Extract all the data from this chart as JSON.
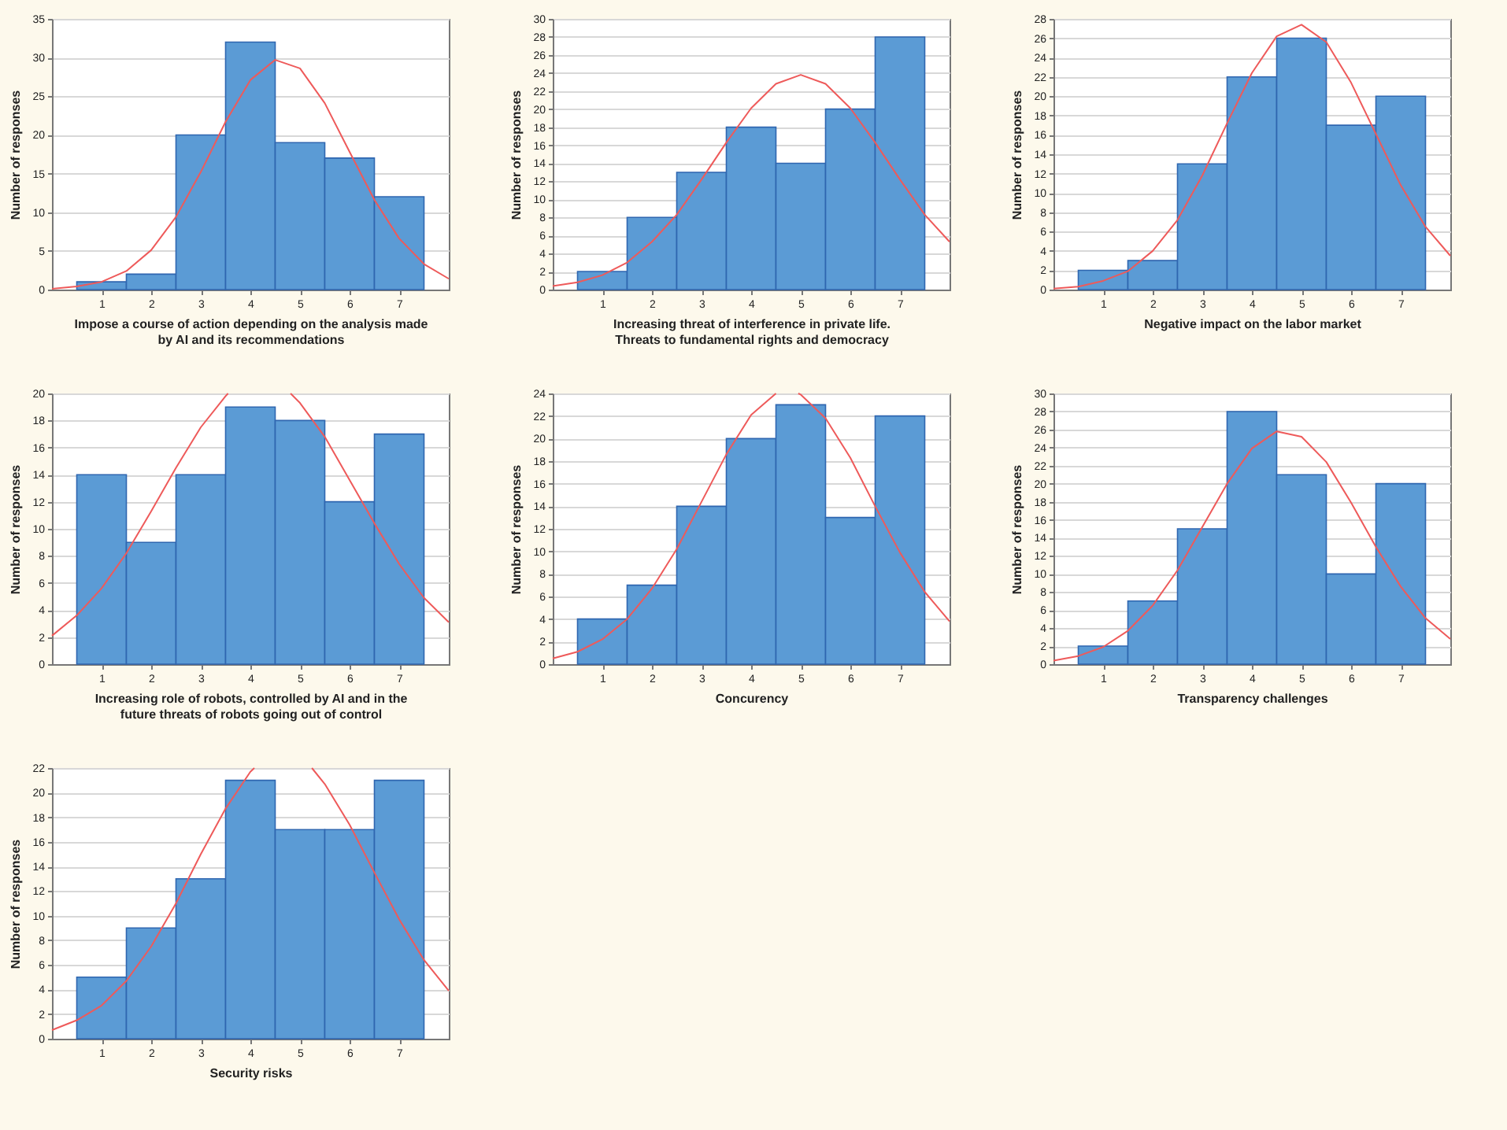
{
  "chart_data": [
    {
      "type": "histogram",
      "xlabel": "Impose a course of action depending on the analysis made by AI and its recommendations",
      "ylabel": "Number of responses",
      "bins": [
        0.5,
        1.5,
        2.5,
        3.5,
        4.5,
        5.5,
        6.5,
        7.5
      ],
      "values": [
        1,
        2,
        20,
        32,
        19,
        17,
        12
      ],
      "color": "#5b9bd5",
      "xlim": [
        0,
        8
      ],
      "xticks": [
        1,
        2,
        3,
        4,
        5,
        6,
        7
      ],
      "ylim": [
        0,
        35
      ],
      "yticks": [
        0,
        5,
        10,
        15,
        20,
        25,
        30,
        35
      ],
      "grid": "y",
      "series": [
        {
          "type": "line",
          "color": "#ee5a5a",
          "x": [
            0,
            0.5,
            1,
            1.5,
            2,
            2.5,
            3,
            3.5,
            4,
            4.5,
            5,
            5.5,
            6,
            6.5,
            7,
            7.5,
            8
          ],
          "values": [
            0.1,
            0.4,
            1.0,
            2.4,
            5.1,
            9.4,
            15.2,
            21.7,
            27.1,
            29.7,
            28.6,
            24.1,
            17.8,
            11.6,
            6.6,
            3.3,
            1.4
          ]
        }
      ]
    },
    {
      "type": "histogram",
      "xlabel": "Increasing threat of interference in private life. Threats to fundamental rights and democracy",
      "ylabel": "Number of responses",
      "bins": [
        0.5,
        1.5,
        2.5,
        3.5,
        4.5,
        5.5,
        6.5,
        7.5
      ],
      "values": [
        2,
        8,
        13,
        18,
        14,
        20,
        28
      ],
      "color": "#5b9bd5",
      "xlim": [
        0,
        8
      ],
      "xticks": [
        1,
        2,
        3,
        4,
        5,
        6,
        7
      ],
      "ylim": [
        0,
        30
      ],
      "yticks": [
        0,
        2,
        4,
        6,
        8,
        10,
        12,
        14,
        16,
        18,
        20,
        22,
        24,
        26,
        28,
        30
      ],
      "grid": "y",
      "series": [
        {
          "type": "line",
          "color": "#ee5a5a",
          "x": [
            0,
            0.5,
            1,
            1.5,
            2,
            2.5,
            3,
            3.5,
            4,
            4.5,
            5,
            5.5,
            6,
            6.5,
            7,
            7.5,
            8
          ],
          "values": [
            0.4,
            0.8,
            1.6,
            3.0,
            5.3,
            8.3,
            12.2,
            16.3,
            20.1,
            22.8,
            23.8,
            22.8,
            20.1,
            16.3,
            12.2,
            8.3,
            5.3
          ]
        }
      ]
    },
    {
      "type": "histogram",
      "xlabel": "Negative impact on the labor market",
      "ylabel": "Number of responses",
      "bins": [
        0.5,
        1.5,
        2.5,
        3.5,
        4.5,
        5.5,
        6.5,
        7.5
      ],
      "values": [
        2,
        3,
        13,
        22,
        26,
        17,
        20
      ],
      "color": "#5b9bd5",
      "xlim": [
        0,
        8
      ],
      "xticks": [
        1,
        2,
        3,
        4,
        5,
        6,
        7
      ],
      "ylim": [
        0,
        28
      ],
      "yticks": [
        0,
        2,
        4,
        6,
        8,
        10,
        12,
        14,
        16,
        18,
        20,
        22,
        24,
        26,
        28
      ],
      "grid": "y",
      "series": [
        {
          "type": "line",
          "color": "#ee5a5a",
          "x": [
            0,
            0.5,
            1,
            1.5,
            2,
            2.5,
            3,
            3.5,
            4,
            4.5,
            5,
            5.5,
            6,
            6.5,
            7,
            7.5,
            8
          ],
          "values": [
            0.1,
            0.3,
            0.9,
            1.9,
            4.0,
            7.2,
            11.8,
            17.2,
            22.4,
            26.2,
            27.4,
            25.6,
            21.4,
            16.1,
            10.8,
            6.5,
            3.5
          ]
        }
      ]
    },
    {
      "type": "histogram",
      "xlabel": "Increasing role of robots, controlled by AI and in the future threats of robots going out of control",
      "ylabel": "Number of responses",
      "bins": [
        0.5,
        1.5,
        2.5,
        3.5,
        4.5,
        5.5,
        6.5,
        7.5
      ],
      "values": [
        14,
        9,
        14,
        19,
        18,
        12,
        17
      ],
      "color": "#5b9bd5",
      "xlim": [
        0,
        8
      ],
      "xticks": [
        1,
        2,
        3,
        4,
        5,
        6,
        7
      ],
      "ylim": [
        0,
        20
      ],
      "yticks": [
        0,
        2,
        4,
        6,
        8,
        10,
        12,
        14,
        16,
        18,
        20
      ],
      "grid": "y",
      "series": [
        {
          "type": "line",
          "color": "#ee5a5a",
          "x": [
            0,
            0.5,
            1,
            1.5,
            2,
            2.5,
            3,
            3.5,
            3.55,
            4.2,
            4.81,
            5,
            5.5,
            6,
            6.5,
            7,
            7.5,
            8
          ],
          "values": [
            2.1,
            3.6,
            5.6,
            8.2,
            11.3,
            14.5,
            17.5,
            19.8,
            20,
            null,
            20,
            19.3,
            16.8,
            13.6,
            10.4,
            7.4,
            4.9,
            3.1
          ]
        }
      ]
    },
    {
      "type": "histogram",
      "xlabel": "Concurency",
      "ylabel": "Number of responses",
      "bins": [
        0.5,
        1.5,
        2.5,
        3.5,
        4.5,
        5.5,
        6.5,
        7.5
      ],
      "values": [
        4,
        7,
        14,
        20,
        23,
        13,
        22
      ],
      "color": "#5b9bd5",
      "xlim": [
        0,
        8
      ],
      "xticks": [
        1,
        2,
        3,
        4,
        5,
        6,
        7
      ],
      "ylim": [
        0,
        24
      ],
      "yticks": [
        0,
        2,
        4,
        6,
        8,
        10,
        12,
        14,
        16,
        18,
        20,
        22,
        24
      ],
      "grid": "y",
      "series": [
        {
          "type": "line",
          "color": "#ee5a5a",
          "x": [
            0,
            0.5,
            1,
            1.5,
            2,
            2.5,
            3,
            3.5,
            4,
            4.5,
            4.73,
            4.95,
            5,
            5.5,
            6,
            6.5,
            7,
            7.5,
            8
          ],
          "values": [
            0.5,
            1.1,
            2.2,
            4.0,
            6.7,
            10.2,
            14.4,
            18.6,
            22.1,
            24,
            null,
            24,
            23.9,
            21.8,
            18.3,
            14.0,
            9.9,
            6.4,
            3.8
          ]
        }
      ]
    },
    {
      "type": "histogram",
      "xlabel": "Transparency challenges",
      "ylabel": "Number of responses",
      "bins": [
        0.5,
        1.5,
        2.5,
        3.5,
        4.5,
        5.5,
        6.5,
        7.5
      ],
      "values": [
        2,
        7,
        15,
        28,
        21,
        10,
        20
      ],
      "color": "#5b9bd5",
      "xlim": [
        0,
        8
      ],
      "xticks": [
        1,
        2,
        3,
        4,
        5,
        6,
        7
      ],
      "ylim": [
        0,
        30
      ],
      "yticks": [
        0,
        2,
        4,
        6,
        8,
        10,
        12,
        14,
        16,
        18,
        20,
        22,
        24,
        26,
        28,
        30
      ],
      "grid": "y",
      "series": [
        {
          "type": "line",
          "color": "#ee5a5a",
          "x": [
            0,
            0.5,
            1,
            1.5,
            2,
            2.5,
            3,
            3.5,
            4,
            4.5,
            5,
            5.5,
            6,
            6.5,
            7,
            7.5,
            8
          ],
          "values": [
            0.4,
            0.9,
            1.9,
            3.7,
            6.5,
            10.4,
            15.2,
            20.0,
            23.9,
            25.8,
            25.2,
            22.4,
            17.9,
            13.0,
            8.6,
            5.1,
            2.8
          ]
        }
      ]
    },
    {
      "type": "histogram",
      "xlabel": "Security risks",
      "ylabel": "Number of responses",
      "bins": [
        0.5,
        1.5,
        2.5,
        3.5,
        4.5,
        5.5,
        6.5,
        7.5
      ],
      "values": [
        5,
        9,
        13,
        21,
        17,
        17,
        21
      ],
      "color": "#5b9bd5",
      "xlim": [
        0,
        8
      ],
      "xticks": [
        1,
        2,
        3,
        4,
        5,
        6,
        7
      ],
      "ylim": [
        0,
        22
      ],
      "yticks": [
        0,
        2,
        4,
        6,
        8,
        10,
        12,
        14,
        16,
        18,
        20,
        22
      ],
      "grid": "y",
      "series": [
        {
          "type": "line",
          "color": "#ee5a5a",
          "x": [
            0,
            0.5,
            1,
            1.5,
            2,
            2.5,
            3,
            3.5,
            4,
            4.08,
            4.66,
            5.24,
            5.5,
            6,
            6.5,
            7,
            7.5,
            8
          ],
          "values": [
            0.7,
            1.5,
            2.7,
            4.7,
            7.5,
            11.0,
            15.0,
            18.7,
            21.7,
            22,
            null,
            22,
            20.7,
            17.4,
            13.5,
            9.7,
            6.4,
            3.9
          ]
        }
      ]
    }
  ]
}
